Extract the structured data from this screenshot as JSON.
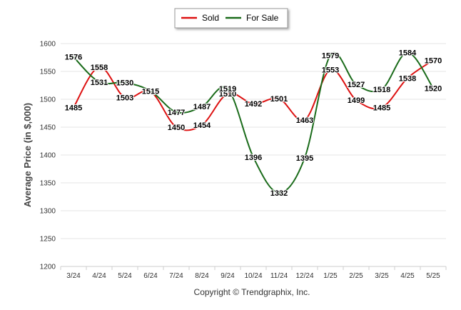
{
  "chart_data": {
    "type": "line",
    "categories": [
      "3/24",
      "4/24",
      "5/24",
      "6/24",
      "7/24",
      "8/24",
      "9/24",
      "10/24",
      "11/24",
      "12/24",
      "1/25",
      "2/25",
      "3/25",
      "4/25",
      "5/25"
    ],
    "series": [
      {
        "name": "Sold",
        "color": "#dd1111",
        "values": [
          1485,
          1558,
          1503,
          1514,
          1450,
          1454,
          1510,
          1492,
          1501,
          1463,
          1553,
          1499,
          1485,
          1538,
          1570
        ]
      },
      {
        "name": "For Sale",
        "color": "#1a6b1a",
        "values": [
          1576,
          1531,
          1530,
          1515,
          1477,
          1487,
          1519,
          1396,
          1332,
          1395,
          1579,
          1527,
          1518,
          1584,
          1520
        ]
      }
    ],
    "ylabel": "Average Price (in $,000)",
    "ylim": [
      1200,
      1600
    ],
    "yticks": [
      1200,
      1250,
      1300,
      1350,
      1400,
      1450,
      1500,
      1550,
      1600
    ],
    "grid": true,
    "legend": "top-center",
    "credit": "Copyright © Trendgraphix, Inc."
  }
}
